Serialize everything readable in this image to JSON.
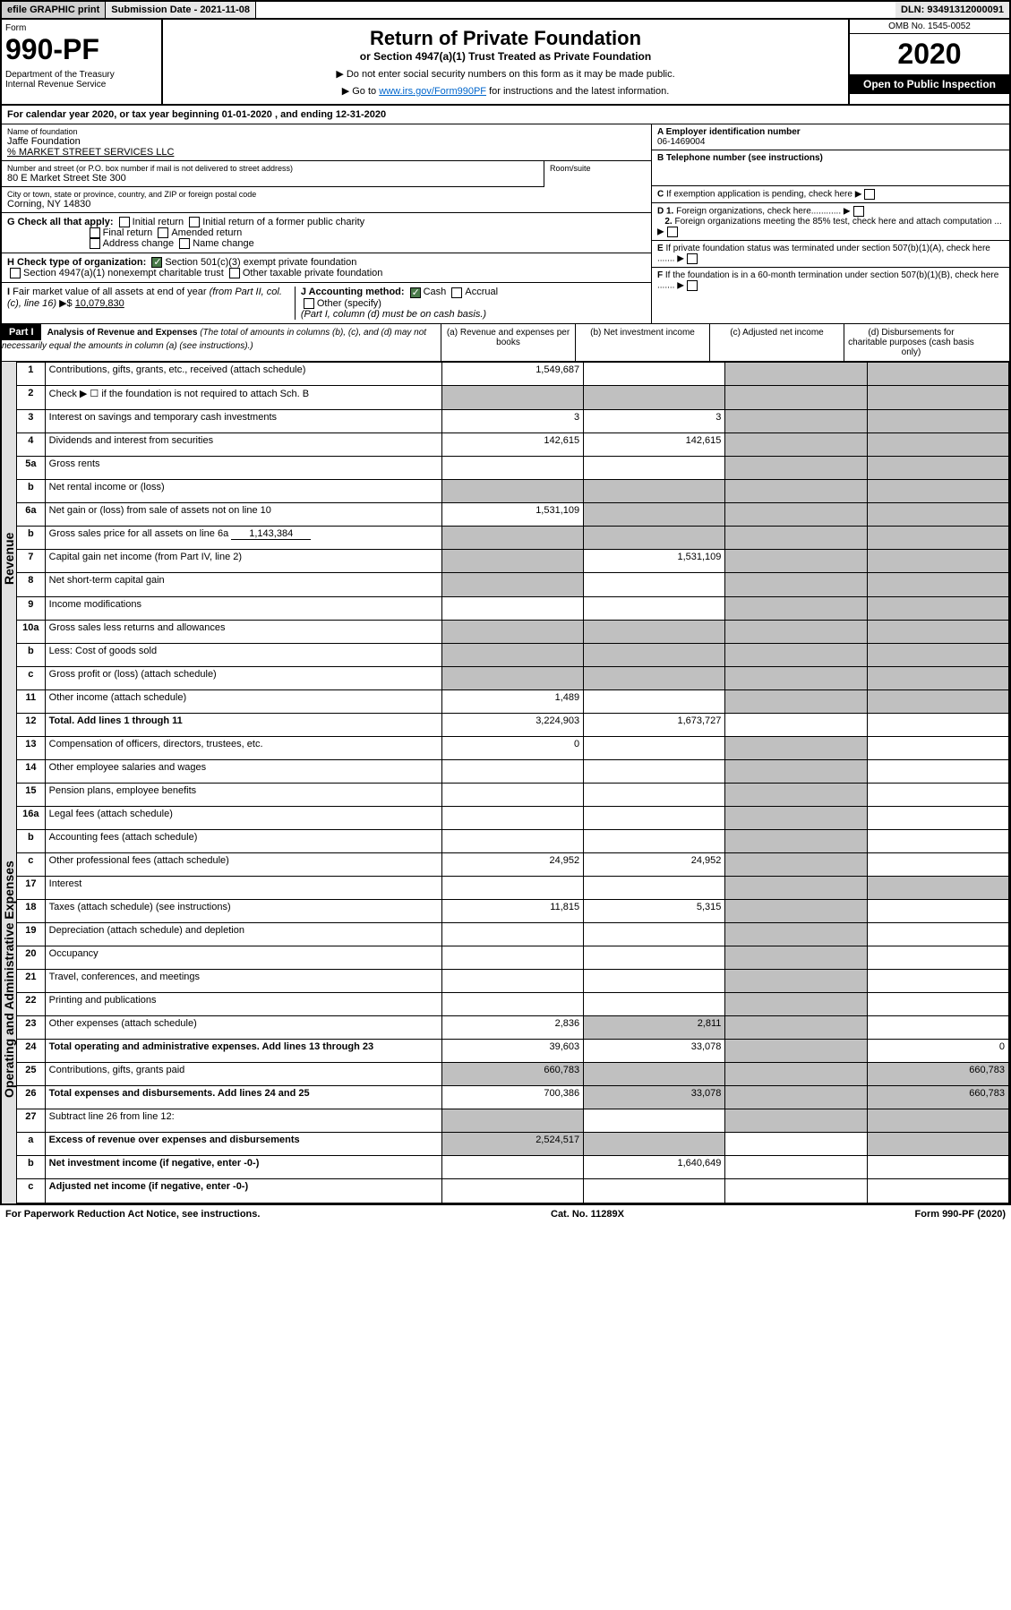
{
  "topbar": {
    "efile": "efile GRAPHIC print",
    "submission": "Submission Date - 2021-11-08",
    "dln": "DLN: 93491312000091"
  },
  "header": {
    "form_label": "Form",
    "form_num": "990-PF",
    "dept": "Department of the Treasury\nInternal Revenue Service",
    "title": "Return of Private Foundation",
    "subtitle": "or Section 4947(a)(1) Trust Treated as Private Foundation",
    "note1": "▶ Do not enter social security numbers on this form as it may be made public.",
    "note2": "▶ Go to ",
    "note2_link": "www.irs.gov/Form990PF",
    "note2_after": " for instructions and the latest information.",
    "omb": "OMB No. 1545-0052",
    "year": "2020",
    "open_pub": "Open to Public Inspection"
  },
  "calyear": "For calendar year 2020, or tax year beginning 01-01-2020                          , and ending 12-31-2020",
  "info": {
    "name_label": "Name of foundation",
    "name": "Jaffe Foundation",
    "care_of": "% MARKET STREET SERVICES LLC",
    "addr_label": "Number and street (or P.O. box number if mail is not delivered to street address)",
    "addr": "80 E Market Street Ste 300",
    "room_label": "Room/suite",
    "city_label": "City or town, state or province, country, and ZIP or foreign postal code",
    "city": "Corning, NY  14830",
    "ein_label": "A Employer identification number",
    "ein": "06-1469004",
    "phone_label": "B Telephone number (see instructions)",
    "pending_label": "C If exemption application is pending, check here",
    "d1_label": "D 1. Foreign organizations, check here............",
    "d2_label": "2. Foreign organizations meeting the 85% test, check here and attach computation ...",
    "e_label": "E  If private foundation status was terminated under section 507(b)(1)(A), check here .......",
    "f_label": "F  If the foundation is in a 60-month termination under section 507(b)(1)(B), check here .......",
    "g_label": "G Check all that apply:",
    "g_opts": [
      "Initial return",
      "Initial return of a former public charity",
      "Final return",
      "Amended return",
      "Address change",
      "Name change"
    ],
    "h_label": "H Check type of organization:",
    "h_opts": [
      "Section 501(c)(3) exempt private foundation",
      "Section 4947(a)(1) nonexempt charitable trust",
      "Other taxable private foundation"
    ],
    "i_label": "I Fair market value of all assets at end of year (from Part II, col. (c), line 16) ▶$ ",
    "i_val": "10,079,830",
    "j_label": "J Accounting method:",
    "j_cash": "Cash",
    "j_accrual": "Accrual",
    "j_other": "Other (specify)",
    "j_note": "(Part I, column (d) must be on cash basis.)"
  },
  "part1": {
    "label": "Part I",
    "title": "Analysis of Revenue and Expenses",
    "title_note": "(The total of amounts in columns (b), (c), and (d) may not necessarily equal the amounts in column (a) (see instructions).)",
    "col_a": "(a)   Revenue and expenses per books",
    "col_b": "(b)   Net investment income",
    "col_c": "(c)   Adjusted net income",
    "col_d": "(d)   Disbursements for charitable purposes (cash basis only)"
  },
  "side": {
    "revenue": "Revenue",
    "expenses": "Operating and Administrative Expenses"
  },
  "rows": [
    {
      "n": "1",
      "d": "Contributions, gifts, grants, etc., received (attach schedule)",
      "a": "1,549,687"
    },
    {
      "n": "2",
      "d": "Check ▶ ☐ if the foundation is not required to attach Sch. B"
    },
    {
      "n": "3",
      "d": "Interest on savings and temporary cash investments",
      "a": "3",
      "b": "3"
    },
    {
      "n": "4",
      "d": "Dividends and interest from securities",
      "a": "142,615",
      "b": "142,615"
    },
    {
      "n": "5a",
      "d": "Gross rents"
    },
    {
      "n": "b",
      "d": "Net rental income or (loss)"
    },
    {
      "n": "6a",
      "d": "Net gain or (loss) from sale of assets not on line 10",
      "a": "1,531,109"
    },
    {
      "n": "b",
      "d": "Gross sales price for all assets on line 6a",
      "inline": "1,143,384"
    },
    {
      "n": "7",
      "d": "Capital gain net income (from Part IV, line 2)",
      "b": "1,531,109"
    },
    {
      "n": "8",
      "d": "Net short-term capital gain"
    },
    {
      "n": "9",
      "d": "Income modifications"
    },
    {
      "n": "10a",
      "d": "Gross sales less returns and allowances"
    },
    {
      "n": "b",
      "d": "Less: Cost of goods sold"
    },
    {
      "n": "c",
      "d": "Gross profit or (loss) (attach schedule)"
    },
    {
      "n": "11",
      "d": "Other income (attach schedule)",
      "a": "1,489"
    },
    {
      "n": "12",
      "d": "Total. Add lines 1 through 11",
      "a": "3,224,903",
      "b": "1,673,727",
      "bold": true
    },
    {
      "n": "13",
      "d": "Compensation of officers, directors, trustees, etc.",
      "a": "0"
    },
    {
      "n": "14",
      "d": "Other employee salaries and wages"
    },
    {
      "n": "15",
      "d": "Pension plans, employee benefits"
    },
    {
      "n": "16a",
      "d": "Legal fees (attach schedule)"
    },
    {
      "n": "b",
      "d": "Accounting fees (attach schedule)"
    },
    {
      "n": "c",
      "d": "Other professional fees (attach schedule)",
      "a": "24,952",
      "b": "24,952"
    },
    {
      "n": "17",
      "d": "Interest"
    },
    {
      "n": "18",
      "d": "Taxes (attach schedule) (see instructions)",
      "a": "11,815",
      "b": "5,315"
    },
    {
      "n": "19",
      "d": "Depreciation (attach schedule) and depletion"
    },
    {
      "n": "20",
      "d": "Occupancy"
    },
    {
      "n": "21",
      "d": "Travel, conferences, and meetings"
    },
    {
      "n": "22",
      "d": "Printing and publications"
    },
    {
      "n": "23",
      "d": "Other expenses (attach schedule)",
      "a": "2,836",
      "b": "2,811"
    },
    {
      "n": "24",
      "d": "Total operating and administrative expenses. Add lines 13 through 23",
      "a": "39,603",
      "b": "33,078",
      "dd": "0",
      "bold": true
    },
    {
      "n": "25",
      "d": "Contributions, gifts, grants paid",
      "a": "660,783",
      "dd": "660,783"
    },
    {
      "n": "26",
      "d": "Total expenses and disbursements. Add lines 24 and 25",
      "a": "700,386",
      "b": "33,078",
      "dd": "660,783",
      "bold": true
    },
    {
      "n": "27",
      "d": "Subtract line 26 from line 12:"
    },
    {
      "n": "a",
      "d": "Excess of revenue over expenses and disbursements",
      "a": "2,524,517",
      "bold": true
    },
    {
      "n": "b",
      "d": "Net investment income (if negative, enter -0-)",
      "b": "1,640,649",
      "bold": true
    },
    {
      "n": "c",
      "d": "Adjusted net income (if negative, enter -0-)",
      "bold": true
    }
  ],
  "footer": {
    "left": "For Paperwork Reduction Act Notice, see instructions.",
    "mid": "Cat. No. 11289X",
    "right": "Form 990-PF (2020)"
  },
  "colors": {
    "shade": "#c0c0c0",
    "header_bg": "#000000",
    "topbar_bg": "#e8e8e8"
  }
}
